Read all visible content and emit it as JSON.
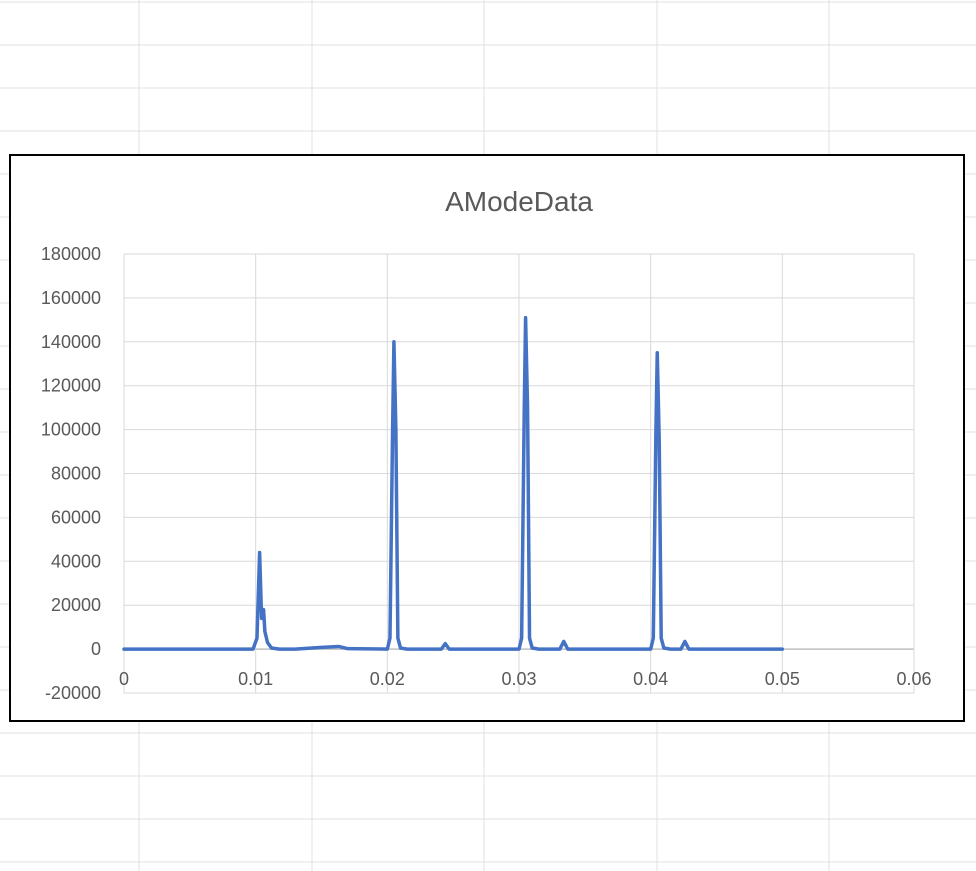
{
  "chart_data": {
    "type": "line",
    "title": "AModeData",
    "xlabel": "",
    "ylabel": "",
    "xlim": [
      0,
      0.06
    ],
    "ylim": [
      -20000,
      180000
    ],
    "x_ticks": [
      0,
      0.01,
      0.02,
      0.03,
      0.04,
      0.05,
      0.06
    ],
    "x_tick_labels": [
      "0",
      "0.01",
      "0.02",
      "0.03",
      "0.04",
      "0.05",
      "0.06"
    ],
    "y_ticks": [
      -20000,
      0,
      20000,
      40000,
      60000,
      80000,
      100000,
      120000,
      140000,
      160000,
      180000
    ],
    "y_tick_labels": [
      "-20000",
      "0",
      "20000",
      "40000",
      "60000",
      "80000",
      "100000",
      "120000",
      "140000",
      "160000",
      "180000"
    ],
    "grid": true,
    "legend": "none",
    "series": [
      {
        "color": "#4472C4",
        "x": [
          0,
          0.0098,
          0.0101,
          0.0103,
          0.01045,
          0.0106,
          0.0107,
          0.0109,
          0.0112,
          0.0118,
          0.013,
          0.015,
          0.0163,
          0.017,
          0.02,
          0.0202,
          0.0204,
          0.0205,
          0.02065,
          0.0208,
          0.021,
          0.0215,
          0.0241,
          0.0244,
          0.0247,
          0.03,
          0.0302,
          0.0304,
          0.0305,
          0.03065,
          0.0308,
          0.031,
          0.0315,
          0.0331,
          0.0334,
          0.0337,
          0.04,
          0.0402,
          0.0404,
          0.0405,
          0.04065,
          0.0408,
          0.041,
          0.0415,
          0.0423,
          0.0426,
          0.0429,
          0.05
        ],
        "y": [
          0,
          0,
          5000,
          44000,
          14000,
          18000,
          8000,
          3000,
          500,
          0,
          0,
          800,
          1200,
          200,
          0,
          5000,
          100000,
          140000,
          100000,
          5000,
          500,
          0,
          0,
          2500,
          0,
          0,
          5000,
          110000,
          151000,
          110000,
          5000,
          500,
          0,
          0,
          3500,
          0,
          0,
          5000,
          100000,
          135000,
          95000,
          5000,
          500,
          0,
          0,
          3500,
          0,
          0
        ]
      }
    ]
  }
}
